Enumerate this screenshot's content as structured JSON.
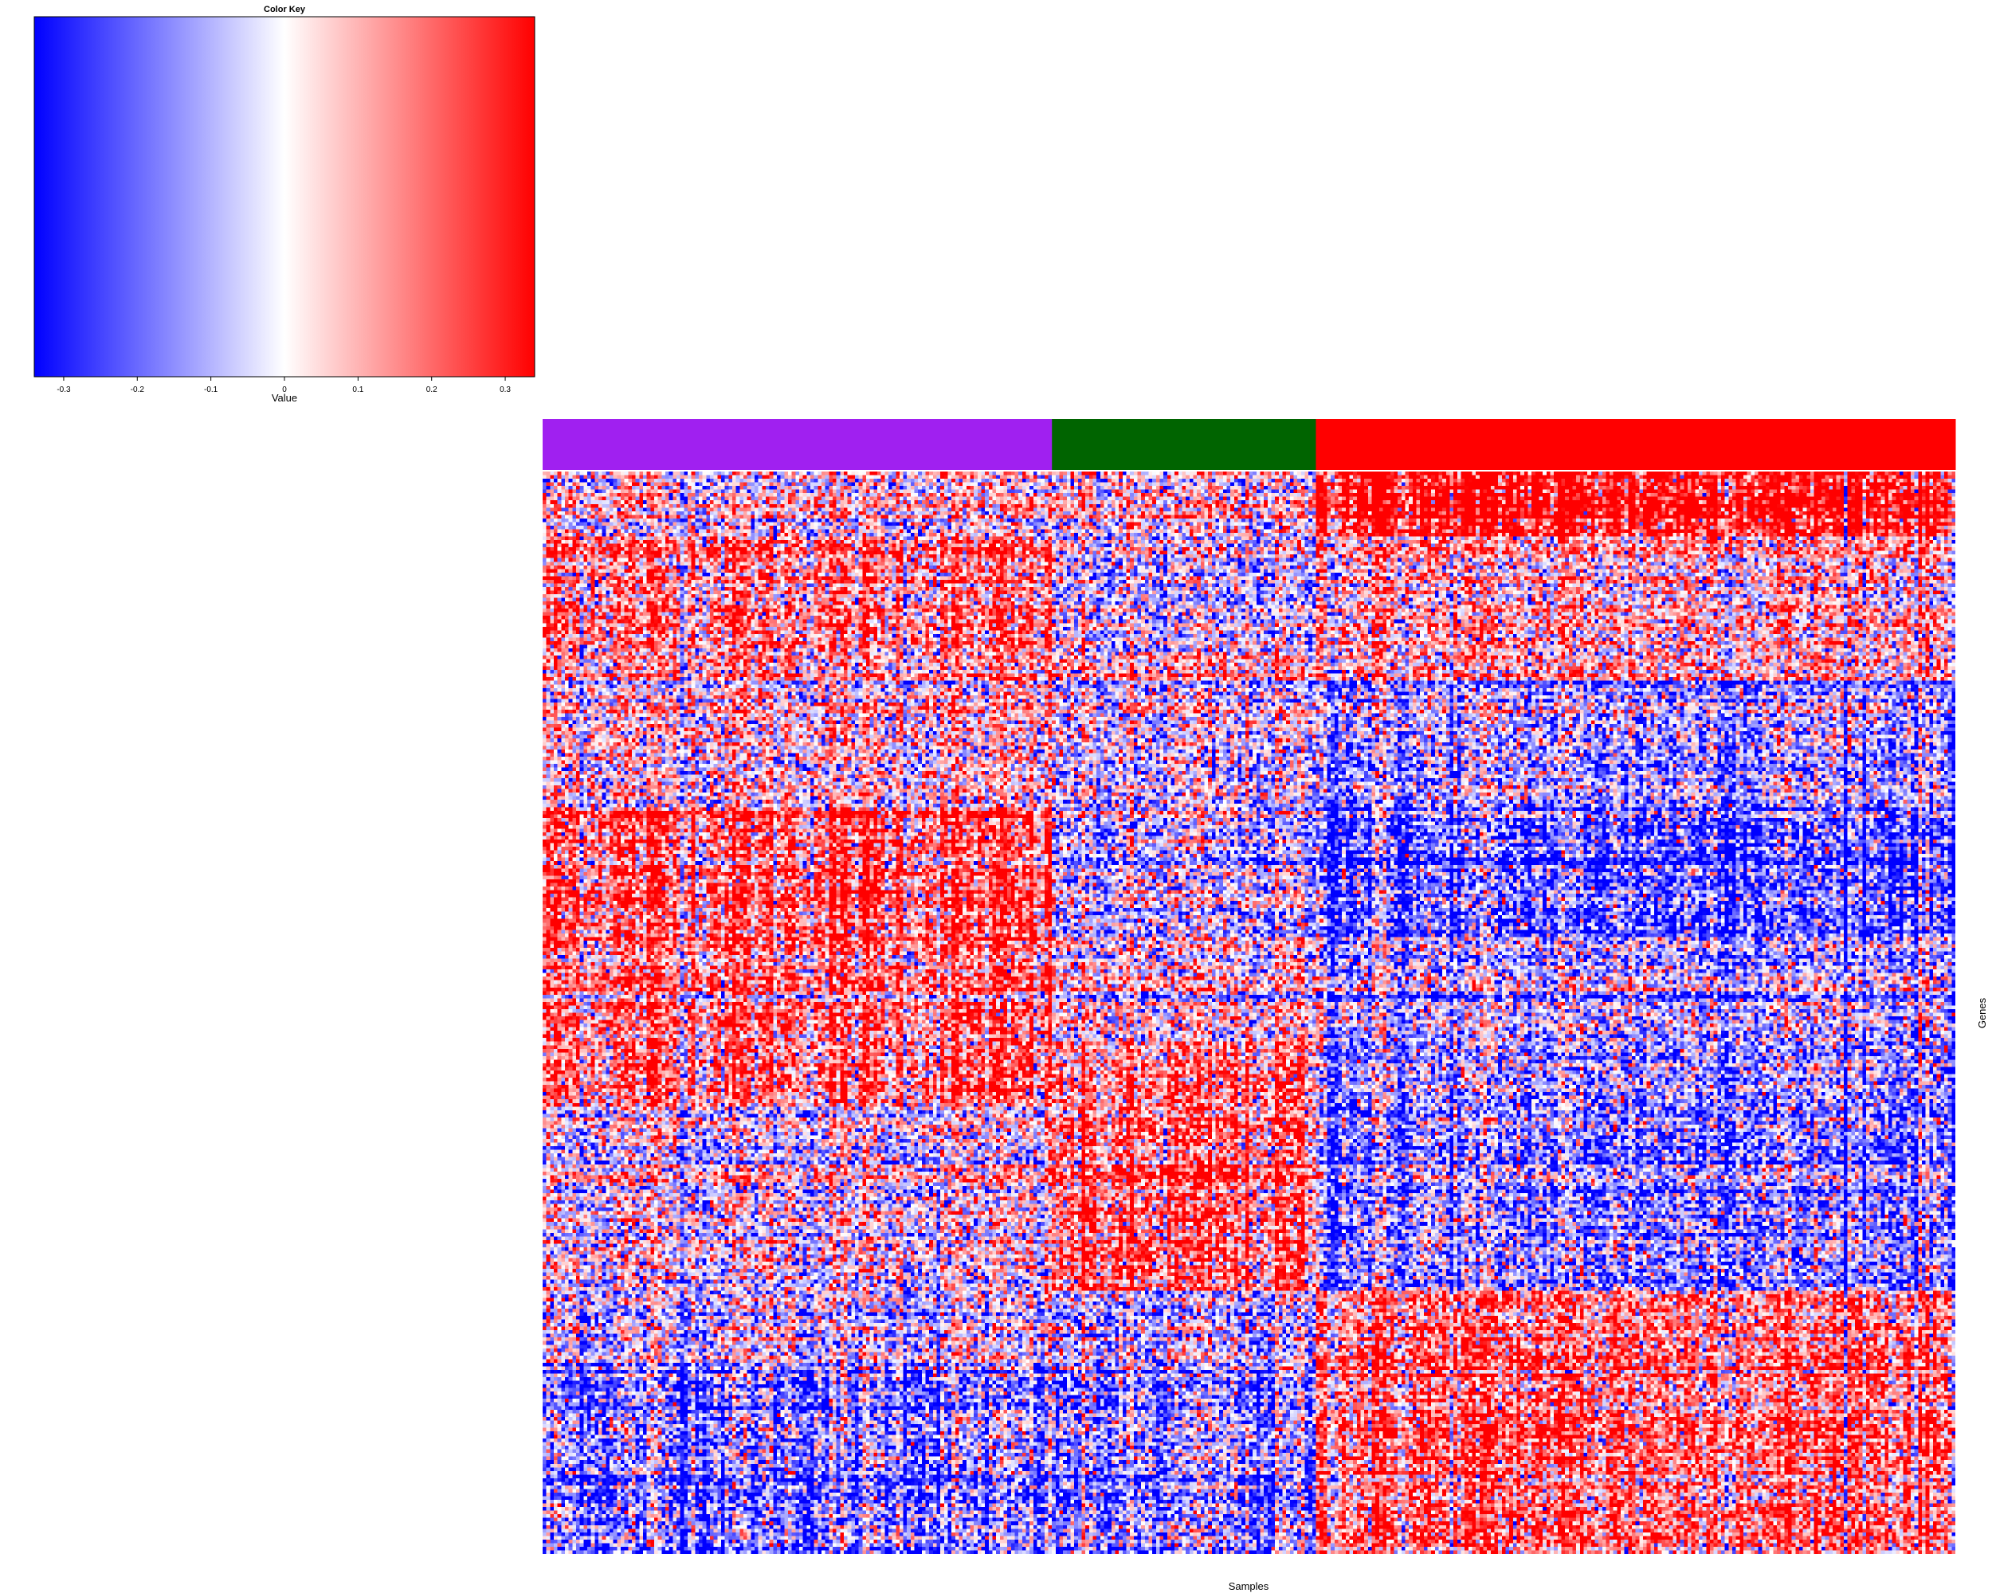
{
  "chart_data": {
    "type": "heatmap",
    "color_key": {
      "title": "Color Key",
      "xlabel": "Value",
      "range": [
        -0.34,
        0.34
      ],
      "ticks": [
        -0.3,
        -0.2,
        -0.1,
        0,
        0.1,
        0.2,
        0.3
      ],
      "tick_labels": [
        "-0.3",
        "-0.2",
        "-0.1",
        "0",
        "0.1",
        "0.2",
        "0.3"
      ],
      "colors": {
        "low": "#0000ff",
        "mid": "#ffffff",
        "high": "#ff0000"
      }
    },
    "heatmap": {
      "xlabel": "Samples",
      "ylabel": "Genes",
      "n_samples": 380,
      "n_genes": 300,
      "sample_groups": [
        {
          "color": "#a020f0",
          "n_samples": 137
        },
        {
          "color": "#006400",
          "n_samples": 71
        },
        {
          "color": "#ff0000",
          "n_samples": 172
        }
      ],
      "gene_blocks": [
        {
          "n_genes": 18,
          "pattern": [
            0.0,
            0.0,
            0.7
          ]
        },
        {
          "n_genes": 32,
          "pattern": [
            0.3,
            -0.1,
            0.15
          ]
        },
        {
          "n_genes": 8,
          "pattern": [
            0.15,
            0.1,
            0.1
          ]
        },
        {
          "n_genes": 35,
          "pattern": [
            0.05,
            -0.1,
            -0.2
          ]
        },
        {
          "n_genes": 37,
          "pattern": [
            0.45,
            -0.1,
            -0.35
          ]
        },
        {
          "n_genes": 28,
          "pattern": [
            0.3,
            0.0,
            -0.15
          ]
        },
        {
          "n_genes": 18,
          "pattern": [
            0.35,
            0.3,
            -0.2
          ]
        },
        {
          "n_genes": 51,
          "pattern": [
            0.0,
            0.35,
            -0.25
          ]
        },
        {
          "n_genes": 20,
          "pattern": [
            -0.1,
            -0.2,
            0.3
          ]
        },
        {
          "n_genes": 53,
          "pattern": [
            -0.3,
            -0.3,
            0.35
          ]
        }
      ]
    }
  }
}
